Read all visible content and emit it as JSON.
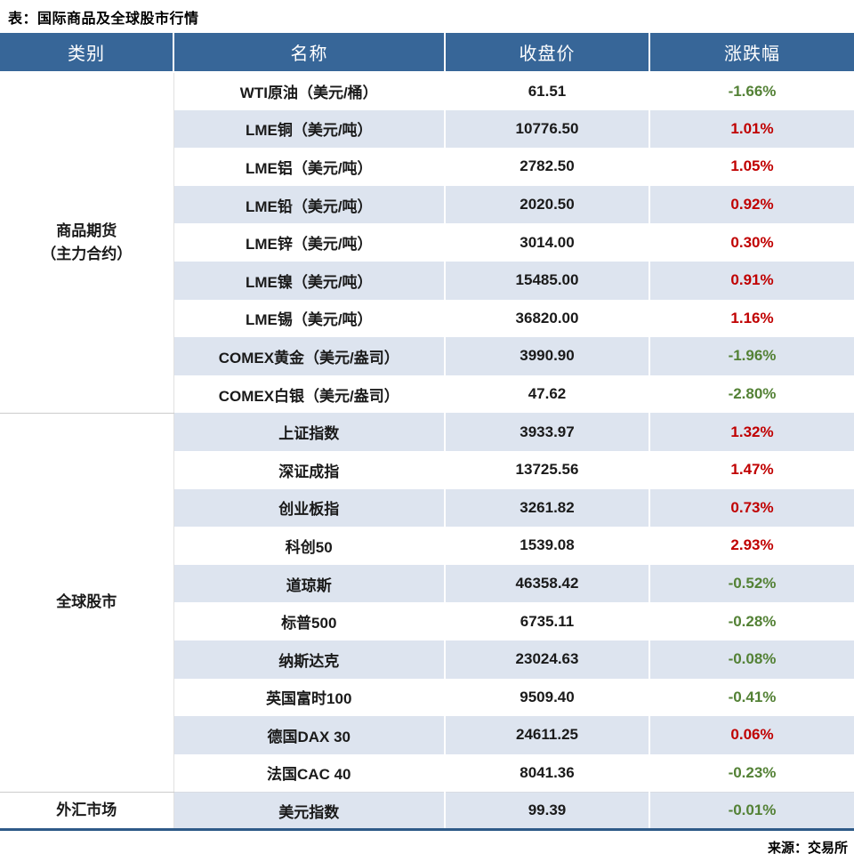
{
  "title": "表：国际商品及全球股市行情",
  "source": "来源：交易所",
  "colors": {
    "up": "#c00000",
    "down": "#538135",
    "header_bg": "#376698",
    "stripe": "#dde4ef",
    "bottom_border": "#2e5a88"
  },
  "table": {
    "headers": [
      "类别",
      "名称",
      "收盘价",
      "涨跌幅"
    ],
    "sections": [
      {
        "category": "商品期货\n（主力合约）",
        "row_count": 9
      },
      {
        "category": "全球股市",
        "row_count": 10
      },
      {
        "category": "外汇市场",
        "row_count": 1
      }
    ],
    "rows": [
      {
        "name": "WTI原油（美元/桶）",
        "close": "61.51",
        "change": "-1.66%"
      },
      {
        "name": "LME铜（美元/吨）",
        "close": "10776.50",
        "change": "1.01%"
      },
      {
        "name": "LME铝（美元/吨）",
        "close": "2782.50",
        "change": "1.05%"
      },
      {
        "name": "LME铅（美元/吨）",
        "close": "2020.50",
        "change": "0.92%"
      },
      {
        "name": "LME锌（美元/吨）",
        "close": "3014.00",
        "change": "0.30%"
      },
      {
        "name": "LME镍（美元/吨）",
        "close": "15485.00",
        "change": "0.91%"
      },
      {
        "name": "LME锡（美元/吨）",
        "close": "36820.00",
        "change": "1.16%"
      },
      {
        "name": "COMEX黄金（美元/盎司）",
        "close": "3990.90",
        "change": "-1.96%"
      },
      {
        "name": "COMEX白银（美元/盎司）",
        "close": "47.62",
        "change": "-2.80%"
      },
      {
        "name": "上证指数",
        "close": "3933.97",
        "change": "1.32%"
      },
      {
        "name": "深证成指",
        "close": "13725.56",
        "change": "1.47%"
      },
      {
        "name": "创业板指",
        "close": "3261.82",
        "change": "0.73%"
      },
      {
        "name": "科创50",
        "close": "1539.08",
        "change": "2.93%"
      },
      {
        "name": "道琼斯",
        "close": "46358.42",
        "change": "-0.52%"
      },
      {
        "name": "标普500",
        "close": "6735.11",
        "change": "-0.28%"
      },
      {
        "name": "纳斯达克",
        "close": "23024.63",
        "change": "-0.08%"
      },
      {
        "name": "英国富时100",
        "close": "9509.40",
        "change": "-0.41%"
      },
      {
        "name": "德国DAX 30",
        "close": "24611.25",
        "change": "0.06%"
      },
      {
        "name": "法国CAC 40",
        "close": "8041.36",
        "change": "-0.23%"
      },
      {
        "name": "美元指数",
        "close": "99.39",
        "change": "-0.01%"
      }
    ]
  },
  "chart_data": {
    "type": "table",
    "title": "表：国际商品及全球股市行情",
    "columns": [
      "类别",
      "名称",
      "收盘价",
      "涨跌幅"
    ],
    "rows": [
      [
        "商品期货（主力合约）",
        "WTI原油（美元/桶）",
        61.51,
        "-1.66%"
      ],
      [
        "商品期货（主力合约）",
        "LME铜（美元/吨）",
        10776.5,
        "1.01%"
      ],
      [
        "商品期货（主力合约）",
        "LME铝（美元/吨）",
        2782.5,
        "1.05%"
      ],
      [
        "商品期货（主力合约）",
        "LME铅（美元/吨）",
        2020.5,
        "0.92%"
      ],
      [
        "商品期货（主力合约）",
        "LME锌（美元/吨）",
        3014.0,
        "0.30%"
      ],
      [
        "商品期货（主力合约）",
        "LME镍（美元/吨）",
        15485.0,
        "0.91%"
      ],
      [
        "商品期货（主力合约）",
        "LME锡（美元/吨）",
        36820.0,
        "1.16%"
      ],
      [
        "商品期货（主力合约）",
        "COMEX黄金（美元/盎司）",
        3990.9,
        "-1.96%"
      ],
      [
        "商品期货（主力合约）",
        "COMEX白银（美元/盎司）",
        47.62,
        "-2.80%"
      ],
      [
        "全球股市",
        "上证指数",
        3933.97,
        "1.32%"
      ],
      [
        "全球股市",
        "深证成指",
        13725.56,
        "1.47%"
      ],
      [
        "全球股市",
        "创业板指",
        3261.82,
        "0.73%"
      ],
      [
        "全球股市",
        "科创50",
        1539.08,
        "2.93%"
      ],
      [
        "全球股市",
        "道琼斯",
        46358.42,
        "-0.52%"
      ],
      [
        "全球股市",
        "标普500",
        6735.11,
        "-0.28%"
      ],
      [
        "全球股市",
        "纳斯达克",
        23024.63,
        "-0.08%"
      ],
      [
        "全球股市",
        "英国富时100",
        9509.4,
        "-0.41%"
      ],
      [
        "全球股市",
        "德国DAX 30",
        24611.25,
        "0.06%"
      ],
      [
        "全球股市",
        "法国CAC 40",
        8041.36,
        "-0.23%"
      ],
      [
        "外汇市场",
        "美元指数",
        99.39,
        "-0.01%"
      ]
    ],
    "source": "来源：交易所",
    "color_convention": "red = up, green = down"
  }
}
